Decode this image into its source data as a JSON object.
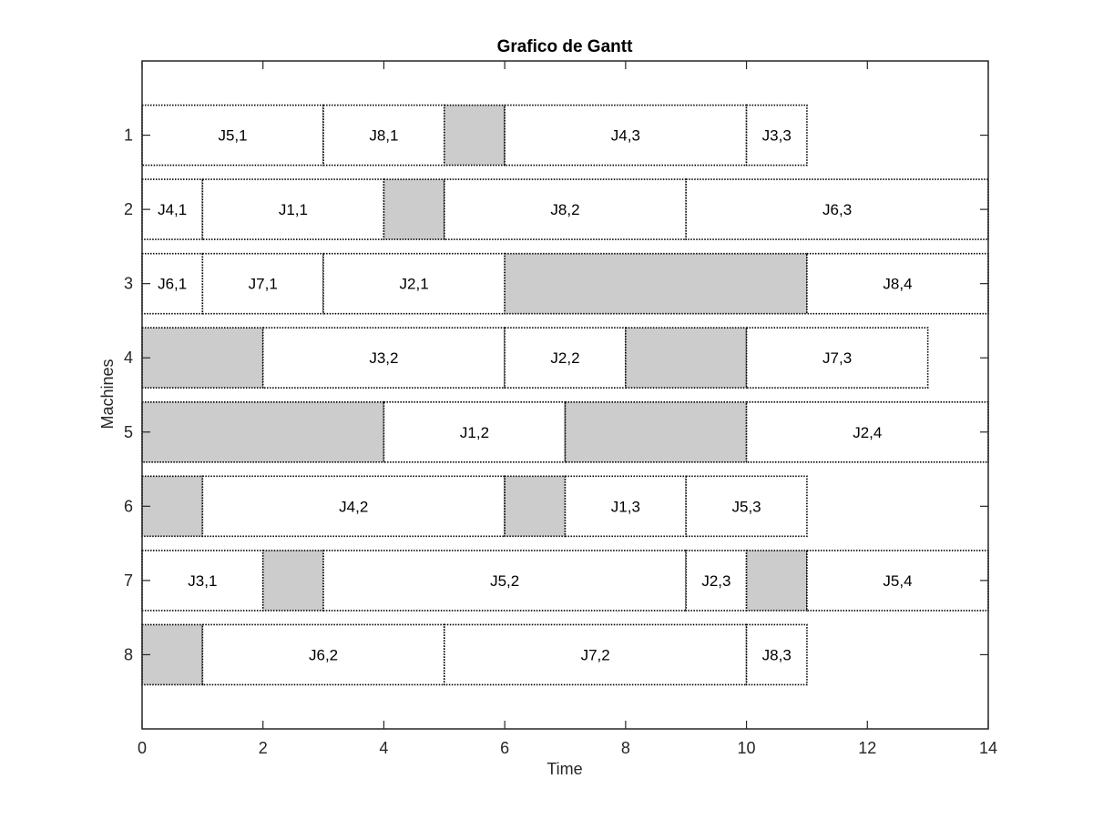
{
  "chart_data": {
    "type": "gantt",
    "title": "Grafico de Gantt",
    "xlabel": "Time",
    "ylabel": "Machines",
    "xlim": [
      0,
      14
    ],
    "ylim": [
      0,
      9
    ],
    "x_ticks": [
      0,
      2,
      4,
      6,
      8,
      10,
      12,
      14
    ],
    "y_ticks": [
      1,
      2,
      3,
      4,
      5,
      6,
      7,
      8
    ],
    "colors": {
      "job": "#ffffff",
      "idle": "#cccccc",
      "border": "#000000"
    },
    "machines": [
      {
        "machine": 1,
        "blocks": [
          {
            "label": "J5,1",
            "start": 0,
            "end": 3
          },
          {
            "label": "J8,1",
            "start": 3,
            "end": 5
          },
          {
            "label": "",
            "start": 5,
            "end": 6,
            "idle": true
          },
          {
            "label": "J4,3",
            "start": 6,
            "end": 10
          },
          {
            "label": "J3,3",
            "start": 10,
            "end": 11
          }
        ]
      },
      {
        "machine": 2,
        "blocks": [
          {
            "label": "J4,1",
            "start": 0,
            "end": 1
          },
          {
            "label": "J1,1",
            "start": 1,
            "end": 4
          },
          {
            "label": "",
            "start": 4,
            "end": 5,
            "idle": true
          },
          {
            "label": "J8,2",
            "start": 5,
            "end": 9
          },
          {
            "label": "J6,3",
            "start": 9,
            "end": 14
          }
        ]
      },
      {
        "machine": 3,
        "blocks": [
          {
            "label": "J6,1",
            "start": 0,
            "end": 1
          },
          {
            "label": "J7,1",
            "start": 1,
            "end": 3
          },
          {
            "label": "J2,1",
            "start": 3,
            "end": 6
          },
          {
            "label": "",
            "start": 6,
            "end": 11,
            "idle": true
          },
          {
            "label": "J8,4",
            "start": 11,
            "end": 14
          }
        ]
      },
      {
        "machine": 4,
        "blocks": [
          {
            "label": "",
            "start": 0,
            "end": 2,
            "idle": true
          },
          {
            "label": "J3,2",
            "start": 2,
            "end": 6
          },
          {
            "label": "J2,2",
            "start": 6,
            "end": 8
          },
          {
            "label": "",
            "start": 8,
            "end": 10,
            "idle": true
          },
          {
            "label": "J7,3",
            "start": 10,
            "end": 13
          }
        ]
      },
      {
        "machine": 5,
        "blocks": [
          {
            "label": "",
            "start": 0,
            "end": 4,
            "idle": true
          },
          {
            "label": "J1,2",
            "start": 4,
            "end": 7
          },
          {
            "label": "",
            "start": 7,
            "end": 10,
            "idle": true
          },
          {
            "label": "J2,4",
            "start": 10,
            "end": 14
          }
        ]
      },
      {
        "machine": 6,
        "blocks": [
          {
            "label": "",
            "start": 0,
            "end": 1,
            "idle": true
          },
          {
            "label": "J4,2",
            "start": 1,
            "end": 6
          },
          {
            "label": "",
            "start": 6,
            "end": 7,
            "idle": true
          },
          {
            "label": "J1,3",
            "start": 7,
            "end": 9
          },
          {
            "label": "J5,3",
            "start": 9,
            "end": 11
          }
        ]
      },
      {
        "machine": 7,
        "blocks": [
          {
            "label": "J3,1",
            "start": 0,
            "end": 2
          },
          {
            "label": "",
            "start": 2,
            "end": 3,
            "idle": true
          },
          {
            "label": "J5,2",
            "start": 3,
            "end": 9
          },
          {
            "label": "J2,3",
            "start": 9,
            "end": 10
          },
          {
            "label": "",
            "start": 10,
            "end": 11,
            "idle": true
          },
          {
            "label": "J5,4",
            "start": 11,
            "end": 14
          }
        ]
      },
      {
        "machine": 8,
        "blocks": [
          {
            "label": "",
            "start": 0,
            "end": 1,
            "idle": true
          },
          {
            "label": "J6,2",
            "start": 1,
            "end": 5
          },
          {
            "label": "J7,2",
            "start": 5,
            "end": 10
          },
          {
            "label": "J8,3",
            "start": 10,
            "end": 11
          }
        ]
      }
    ]
  }
}
